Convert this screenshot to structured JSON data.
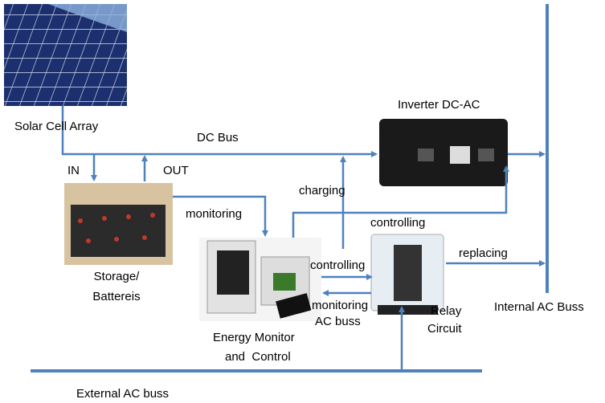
{
  "nodes": {
    "solar": {
      "label": "Solar Cell Array"
    },
    "storage": {
      "label": [
        "Storage/",
        "Battereis"
      ]
    },
    "inverter": {
      "label": "Inverter DC-AC"
    },
    "monitor": {
      "label": [
        "Energy Monitor",
        "and  Control"
      ]
    },
    "relay": {
      "label": [
        "Relay",
        "Circuit"
      ]
    }
  },
  "buses": {
    "dc": "DC Bus",
    "internal": "Internal AC Buss",
    "external": "External AC buss"
  },
  "edges": {
    "in": "IN",
    "out": "OUT",
    "monitoring": "monitoring",
    "charging": "charging",
    "controlling_inverter": "controlling",
    "controlling_relay": "controlling",
    "monitoring_ac": [
      "monitoring",
      "AC buss"
    ],
    "replacing": "replacing"
  }
}
